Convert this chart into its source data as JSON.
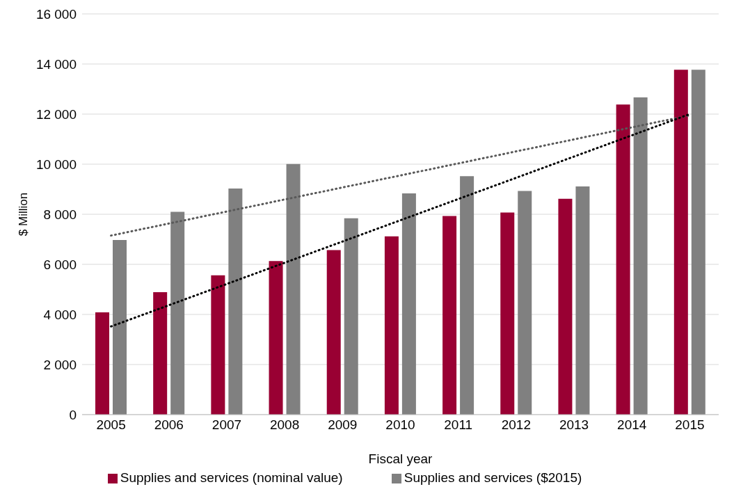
{
  "chart_data": {
    "type": "bar",
    "xlabel": "Fiscal year",
    "ylabel": "$ Million",
    "categories": [
      "2005",
      "2006",
      "2007",
      "2008",
      "2009",
      "2010",
      "2011",
      "2012",
      "2013",
      "2014",
      "2015"
    ],
    "series": [
      {
        "name": "Supplies and services (nominal value)",
        "color": "#990033",
        "values": [
          4080,
          4890,
          5560,
          6130,
          6570,
          7120,
          7930,
          8070,
          8620,
          12380,
          13770
        ]
      },
      {
        "name": "Supplies and services ($2015)",
        "color": "#808080",
        "values": [
          6970,
          8100,
          9030,
          10010,
          7840,
          8830,
          9520,
          8930,
          9110,
          12670,
          13770
        ]
      },
      {
        "type": "line",
        "color": "#595959",
        "values": [
          7150,
          null,
          null,
          null,
          null,
          null,
          null,
          null,
          null,
          null,
          11950
        ],
        "line_style": "dotted",
        "marker": "none"
      },
      {
        "type": "line",
        "color": "#000000",
        "values": [
          3520,
          null,
          null,
          null,
          null,
          null,
          null,
          null,
          null,
          null,
          12000
        ],
        "line_style": "dotted",
        "marker": "none"
      }
    ],
    "ylim": [
      0,
      16000
    ],
    "yticks": [
      {
        "value": 0,
        "label": "0"
      },
      {
        "value": 2000,
        "label": "2 000"
      },
      {
        "value": 4000,
        "label": "4 000"
      },
      {
        "value": 6000,
        "label": "6 000"
      },
      {
        "value": 8000,
        "label": "8 000"
      },
      {
        "value": 10000,
        "label": "10 000"
      },
      {
        "value": 12000,
        "label": "12 000"
      },
      {
        "value": 14000,
        "label": "14 000"
      },
      {
        "value": 16000,
        "label": "16 000"
      }
    ],
    "grid": "y",
    "legend": "bottom"
  }
}
